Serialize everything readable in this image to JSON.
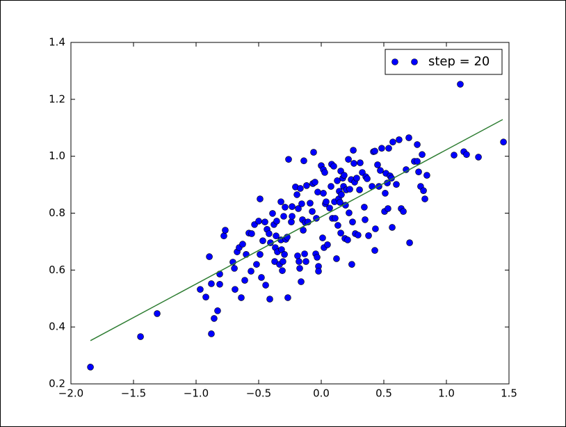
{
  "chart_data": {
    "type": "scatter",
    "series": [
      {
        "name": "step = 20",
        "color": "#0000ff",
        "x": [
          -1.844,
          -1.444,
          -1.311,
          -0.967,
          -0.922,
          -0.894,
          -0.878,
          -0.878,
          -0.856,
          -0.828,
          -0.811,
          -0.811,
          -0.778,
          -0.767,
          -0.706,
          -0.694,
          -0.689,
          -0.672,
          -0.656,
          -0.639,
          -0.628,
          -0.611,
          -0.6,
          -0.578,
          -0.561,
          -0.556,
          -0.533,
          -0.517,
          -0.5,
          -0.489,
          -0.489,
          -0.478,
          -0.467,
          -0.45,
          -0.444,
          -0.433,
          -0.417,
          -0.411,
          -0.406,
          -0.389,
          -0.378,
          -0.372,
          -0.367,
          -0.361,
          -0.356,
          -0.35,
          -0.333,
          -0.322,
          -0.322,
          -0.317,
          -0.311,
          -0.306,
          -0.3,
          -0.294,
          -0.289,
          -0.283,
          -0.272,
          -0.267,
          -0.261,
          -0.239,
          -0.233,
          -0.233,
          -0.206,
          -0.194,
          -0.189,
          -0.183,
          -0.178,
          -0.172,
          -0.167,
          -0.161,
          -0.156,
          -0.15,
          -0.144,
          -0.139,
          -0.133,
          -0.128,
          -0.122,
          -0.117,
          -0.106,
          -0.089,
          -0.072,
          -0.067,
          -0.061,
          -0.05,
          -0.044,
          -0.039,
          -0.033,
          -0.028,
          -0.022,
          -0.022,
          0.0,
          0.011,
          0.017,
          0.017,
          0.022,
          0.028,
          0.033,
          0.039,
          0.05,
          0.067,
          0.078,
          0.083,
          0.089,
          0.1,
          0.106,
          0.111,
          0.122,
          0.128,
          0.133,
          0.139,
          0.144,
          0.15,
          0.156,
          0.156,
          0.161,
          0.172,
          0.178,
          0.183,
          0.189,
          0.194,
          0.2,
          0.211,
          0.217,
          0.222,
          0.228,
          0.239,
          0.244,
          0.25,
          0.256,
          0.261,
          0.267,
          0.272,
          0.283,
          0.294,
          0.306,
          0.311,
          0.328,
          0.344,
          0.35,
          0.356,
          0.367,
          0.378,
          0.406,
          0.417,
          0.428,
          0.428,
          0.433,
          0.45,
          0.461,
          0.472,
          0.483,
          0.506,
          0.511,
          0.517,
          0.528,
          0.533,
          0.539,
          0.55,
          0.561,
          0.567,
          0.572,
          0.6,
          0.622,
          0.639,
          0.656,
          0.678,
          0.7,
          0.706,
          0.744,
          0.767,
          0.767,
          0.778,
          0.794,
          0.806,
          0.817,
          0.828,
          0.844,
          1.061,
          1.111,
          1.139,
          1.161,
          1.256,
          1.456
        ],
        "y": [
          0.259,
          0.366,
          0.447,
          0.532,
          0.505,
          0.647,
          0.552,
          0.376,
          0.43,
          0.457,
          0.55,
          0.586,
          0.72,
          0.74,
          0.628,
          0.606,
          0.532,
          0.664,
          0.679,
          0.503,
          0.691,
          0.564,
          0.655,
          0.73,
          0.596,
          0.728,
          0.76,
          0.62,
          0.772,
          0.85,
          0.655,
          0.574,
          0.703,
          0.769,
          0.547,
          0.743,
          0.728,
          0.498,
          0.696,
          0.799,
          0.76,
          0.63,
          0.679,
          0.72,
          0.772,
          0.664,
          0.62,
          0.84,
          0.706,
          0.672,
          0.598,
          0.63,
          0.789,
          0.655,
          0.821,
          0.708,
          0.716,
          0.503,
          0.989,
          0.769,
          0.823,
          0.789,
          0.892,
          0.865,
          0.65,
          0.816,
          0.63,
          0.606,
          0.887,
          0.559,
          0.833,
          0.777,
          0.74,
          0.984,
          0.657,
          0.767,
          0.63,
          0.897,
          0.769,
          0.835,
          0.806,
          0.904,
          1.014,
          0.909,
          0.657,
          0.782,
          0.645,
          0.874,
          0.613,
          0.596,
          0.967,
          0.713,
          0.953,
          0.87,
          0.679,
          0.943,
          0.833,
          0.84,
          0.689,
          0.818,
          0.894,
          0.972,
          0.782,
          0.965,
          0.84,
          0.782,
          0.64,
          0.914,
          0.757,
          0.85,
          0.877,
          0.838,
          0.948,
          0.73,
          0.865,
          0.923,
          0.894,
          0.933,
          0.711,
          0.828,
          0.882,
          0.706,
          0.989,
          0.801,
          0.884,
          0.918,
          0.62,
          0.769,
          1.021,
          0.975,
          0.909,
          0.728,
          0.923,
          0.723,
          0.882,
          0.977,
          0.943,
          0.821,
          0.777,
          0.928,
          0.921,
          0.721,
          0.894,
          1.016,
          1.018,
          0.669,
          0.745,
          0.97,
          0.894,
          0.95,
          1.028,
          0.806,
          0.87,
          0.94,
          0.906,
          0.816,
          1.028,
          0.931,
          0.923,
          0.75,
          1.05,
          0.901,
          1.058,
          0.816,
          0.806,
          0.953,
          1.065,
          0.696,
          0.982,
          1.041,
          0.982,
          0.945,
          0.894,
          1.006,
          0.879,
          0.85,
          0.933,
          1.004,
          1.253,
          1.016,
          1.006,
          0.997,
          1.05
        ]
      }
    ],
    "line": {
      "color": "#2e7d32",
      "x": [
        -1.844,
        1.45
      ],
      "y": [
        0.352,
        1.129
      ]
    },
    "xlim": [
      -2.0,
      1.5
    ],
    "xticks": [
      {
        "value": -2.0,
        "label": "−2.0"
      },
      {
        "value": -1.5,
        "label": "−1.5"
      },
      {
        "value": -1.0,
        "label": "−1.0"
      },
      {
        "value": -0.5,
        "label": "−0.5"
      },
      {
        "value": 0.0,
        "label": "0.0"
      },
      0.5,
      {
        "value": 1.0,
        "label": "1.0"
      },
      1.5
    ],
    "ylim": [
      0.2,
      1.4
    ],
    "yticks": [
      0.2,
      0.4,
      0.6,
      0.8,
      {
        "value": 1.0,
        "label": "1.0"
      },
      1.2,
      1.4
    ],
    "legend": "upper right"
  }
}
